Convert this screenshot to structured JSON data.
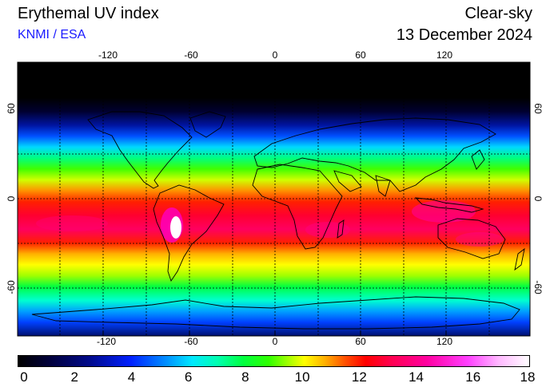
{
  "header": {
    "title": "Erythemal UV index",
    "credit": "KNMI / ESA",
    "mode": "Clear-sky",
    "date": "13 December 2024"
  },
  "map": {
    "longitude_ticks": [
      "-120",
      "-60",
      "0",
      "60",
      "120"
    ],
    "latitude_ticks": [
      "60",
      "0",
      "-60"
    ],
    "longitude_values": [
      -120,
      -60,
      0,
      60,
      120
    ],
    "latitude_values": [
      60,
      0,
      -60
    ],
    "grid": true,
    "grid_spacing_deg": 30
  },
  "colorbar": {
    "labels": [
      "0",
      "2",
      "4",
      "6",
      "8",
      "10",
      "12",
      "14",
      "16",
      "18"
    ],
    "min": 0,
    "max": 18
  },
  "colors": {
    "credit": "#1a1aff",
    "max_uv": "#ffffff",
    "high_uv": "#ff0000",
    "moderate_uv": "#00ff40",
    "low_uv": "#000000"
  }
}
